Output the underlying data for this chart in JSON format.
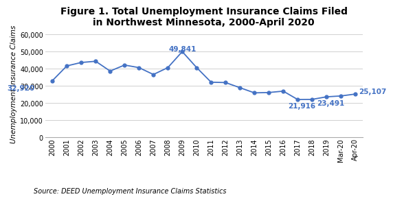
{
  "title": "Figure 1. Total Unemployment Insurance Claims Filed\nin Northwest Minnesota, 2000-April 2020",
  "ylabel": "Unemployment Insurance Claims",
  "source": "Source: DEED Unemployment Insurance Claims Statistics",
  "line_color": "#4472C4",
  "marker_color": "#4472C4",
  "background_color": "#ffffff",
  "labels": [
    "2000",
    "2001",
    "2002",
    "2003",
    "2004",
    "2005",
    "2006",
    "2007",
    "2008",
    "2009",
    "2010",
    "2011",
    "2012",
    "2013",
    "2014",
    "2015",
    "2016",
    "2017",
    "2018",
    "2019",
    "Mar-20",
    "Apr-20"
  ],
  "values": [
    32920,
    41500,
    43500,
    44200,
    38500,
    42000,
    40500,
    36500,
    40500,
    49841,
    40500,
    32000,
    31800,
    28800,
    25800,
    26000,
    26800,
    21916,
    22000,
    23491,
    24000,
    25107
  ],
  "annotated_points": {
    "2000": [
      32920,
      -2.2,
      -4200
    ],
    "2009": [
      49841,
      0,
      1600
    ],
    "2017": [
      21916,
      0.3,
      -3800
    ],
    "2019": [
      23491,
      0.3,
      -3500
    ],
    "Apr-20": [
      25107,
      1.2,
      1400
    ]
  },
  "ylim": [
    0,
    62000
  ],
  "yticks": [
    0,
    10000,
    20000,
    30000,
    40000,
    50000,
    60000
  ],
  "title_fontsize": 10,
  "axis_label_fontsize": 7.5,
  "tick_fontsize": 7,
  "source_fontsize": 7,
  "annotation_fontsize": 7.5
}
